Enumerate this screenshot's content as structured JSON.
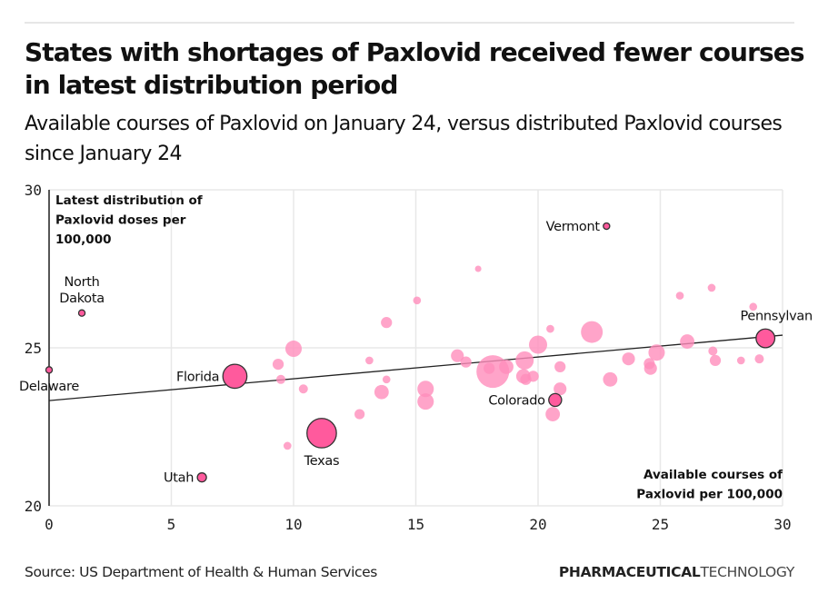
{
  "header": {
    "title": "States with shortages of Paxlovid received fewer courses in latest distribution period",
    "subtitle": "Available courses of Paxlovid on January 24, versus distributed Paxlovid courses since January 24"
  },
  "footer": {
    "source": "Source: US Department of Health & Human Services",
    "brand_bold": "PHARMACEUTICAL",
    "brand_light": "TECHNOLOGY"
  },
  "colors": {
    "highlight": "#ff5a9d",
    "default": "#ff8dbb",
    "stroke": "#333333",
    "grid": "#e8e8e8",
    "trend": "#222222"
  },
  "chart_data": {
    "type": "scatter",
    "title": "States with shortages of Paxlovid received fewer courses in latest distribution period",
    "subtitle": "Available courses of Paxlovid on January 24, versus distributed Paxlovid courses since January 24",
    "xlabel": "Available courses of Paxlovid per 100,000",
    "ylabel": "Latest distribution of Paxlovid doses per 100,000",
    "xlim": [
      0,
      30
    ],
    "ylim": [
      20,
      30
    ],
    "xticks": [
      "0",
      "5",
      "10",
      "15",
      "20",
      "25",
      "30"
    ],
    "yticks": [
      "20",
      "25",
      "30"
    ],
    "grid": true,
    "trendline": {
      "x": [
        0,
        30
      ],
      "y": [
        23.33,
        25.4
      ]
    },
    "size_note": "bubble size scaled by relative size (estimated)",
    "points": [
      {
        "label": "Delaware",
        "x": 0.0,
        "y": 24.3,
        "size": 2,
        "highlight": true,
        "label_pos": "below"
      },
      {
        "label": "North Dakota",
        "x": 1.34,
        "y": 26.1,
        "size": 2,
        "highlight": true,
        "label_pos": "above"
      },
      {
        "label": "Utah",
        "x": 6.25,
        "y": 20.9,
        "size": 4,
        "highlight": true,
        "label_pos": "left"
      },
      {
        "label": "Florida",
        "x": 7.6,
        "y": 24.1,
        "size": 28,
        "highlight": true,
        "label_pos": "left"
      },
      {
        "label": "Texas",
        "x": 11.15,
        "y": 22.3,
        "size": 42,
        "highlight": true,
        "label_pos": "below"
      },
      {
        "label": "Colorado",
        "x": 20.7,
        "y": 23.35,
        "size": 8,
        "highlight": true,
        "label_pos": "left"
      },
      {
        "label": "Vermont",
        "x": 22.8,
        "y": 28.85,
        "size": 2,
        "highlight": true,
        "label_pos": "left"
      },
      {
        "label": "Pennsylvania",
        "x": 29.3,
        "y": 25.3,
        "size": 17,
        "highlight": true,
        "label_pos": "above",
        "display_label": "Pennsylvan"
      },
      {
        "label": "",
        "x": 9.37,
        "y": 24.48,
        "size": 6,
        "highlight": false
      },
      {
        "label": "",
        "x": 9.48,
        "y": 24.0,
        "size": 4,
        "highlight": false
      },
      {
        "label": "",
        "x": 10.0,
        "y": 24.97,
        "size": 13,
        "highlight": false
      },
      {
        "label": "",
        "x": 9.75,
        "y": 21.9,
        "size": 3,
        "highlight": false
      },
      {
        "label": "",
        "x": 10.4,
        "y": 23.7,
        "size": 4,
        "highlight": false
      },
      {
        "label": "",
        "x": 12.7,
        "y": 22.9,
        "size": 5,
        "highlight": false
      },
      {
        "label": "",
        "x": 13.1,
        "y": 24.6,
        "size": 3,
        "highlight": false
      },
      {
        "label": "",
        "x": 13.6,
        "y": 23.6,
        "size": 10,
        "highlight": false
      },
      {
        "label": "",
        "x": 13.8,
        "y": 24.0,
        "size": 3,
        "highlight": false
      },
      {
        "label": "",
        "x": 13.8,
        "y": 25.8,
        "size": 6,
        "highlight": false
      },
      {
        "label": "",
        "x": 15.05,
        "y": 26.5,
        "size": 3,
        "highlight": false
      },
      {
        "label": "",
        "x": 15.4,
        "y": 23.7,
        "size": 13,
        "highlight": false
      },
      {
        "label": "",
        "x": 15.4,
        "y": 23.3,
        "size": 13,
        "highlight": false
      },
      {
        "label": "",
        "x": 16.7,
        "y": 24.75,
        "size": 8,
        "highlight": false
      },
      {
        "label": "",
        "x": 17.05,
        "y": 24.55,
        "size": 6,
        "highlight": false
      },
      {
        "label": "",
        "x": 17.55,
        "y": 27.5,
        "size": 2,
        "highlight": false
      },
      {
        "label": "",
        "x": 18.0,
        "y": 24.35,
        "size": 6,
        "highlight": false
      },
      {
        "label": "",
        "x": 18.15,
        "y": 24.25,
        "size": 52,
        "highlight": false
      },
      {
        "label": "",
        "x": 18.7,
        "y": 24.4,
        "size": 10,
        "highlight": false
      },
      {
        "label": "",
        "x": 19.4,
        "y": 24.1,
        "size": 10,
        "highlight": false
      },
      {
        "label": "",
        "x": 19.45,
        "y": 24.6,
        "size": 16,
        "highlight": false
      },
      {
        "label": "",
        "x": 19.5,
        "y": 24.0,
        "size": 6,
        "highlight": false
      },
      {
        "label": "",
        "x": 19.8,
        "y": 24.1,
        "size": 6,
        "highlight": false
      },
      {
        "label": "",
        "x": 20.0,
        "y": 25.1,
        "size": 16,
        "highlight": false
      },
      {
        "label": "",
        "x": 20.5,
        "y": 25.6,
        "size": 3,
        "highlight": false
      },
      {
        "label": "",
        "x": 20.6,
        "y": 22.9,
        "size": 10,
        "highlight": false
      },
      {
        "label": "",
        "x": 20.9,
        "y": 24.4,
        "size": 6,
        "highlight": false
      },
      {
        "label": "",
        "x": 20.9,
        "y": 23.7,
        "size": 8,
        "highlight": false
      },
      {
        "label": "",
        "x": 22.2,
        "y": 25.5,
        "size": 23,
        "highlight": false
      },
      {
        "label": "",
        "x": 22.95,
        "y": 24.0,
        "size": 10,
        "highlight": false
      },
      {
        "label": "",
        "x": 23.7,
        "y": 24.65,
        "size": 8,
        "highlight": false
      },
      {
        "label": "",
        "x": 24.55,
        "y": 24.5,
        "size": 6,
        "highlight": false
      },
      {
        "label": "",
        "x": 24.6,
        "y": 24.35,
        "size": 8,
        "highlight": false
      },
      {
        "label": "",
        "x": 24.85,
        "y": 24.85,
        "size": 13,
        "highlight": false
      },
      {
        "label": "",
        "x": 25.8,
        "y": 26.65,
        "size": 3,
        "highlight": false
      },
      {
        "label": "",
        "x": 26.1,
        "y": 25.2,
        "size": 10,
        "highlight": false
      },
      {
        "label": "",
        "x": 27.1,
        "y": 26.9,
        "size": 3,
        "highlight": false
      },
      {
        "label": "",
        "x": 27.15,
        "y": 24.9,
        "size": 4,
        "highlight": false
      },
      {
        "label": "",
        "x": 27.25,
        "y": 24.6,
        "size": 6,
        "highlight": false
      },
      {
        "label": "",
        "x": 28.3,
        "y": 24.6,
        "size": 3,
        "highlight": false
      },
      {
        "label": "",
        "x": 28.8,
        "y": 26.3,
        "size": 3,
        "highlight": false
      },
      {
        "label": "",
        "x": 29.05,
        "y": 24.65,
        "size": 4,
        "highlight": false
      }
    ]
  }
}
